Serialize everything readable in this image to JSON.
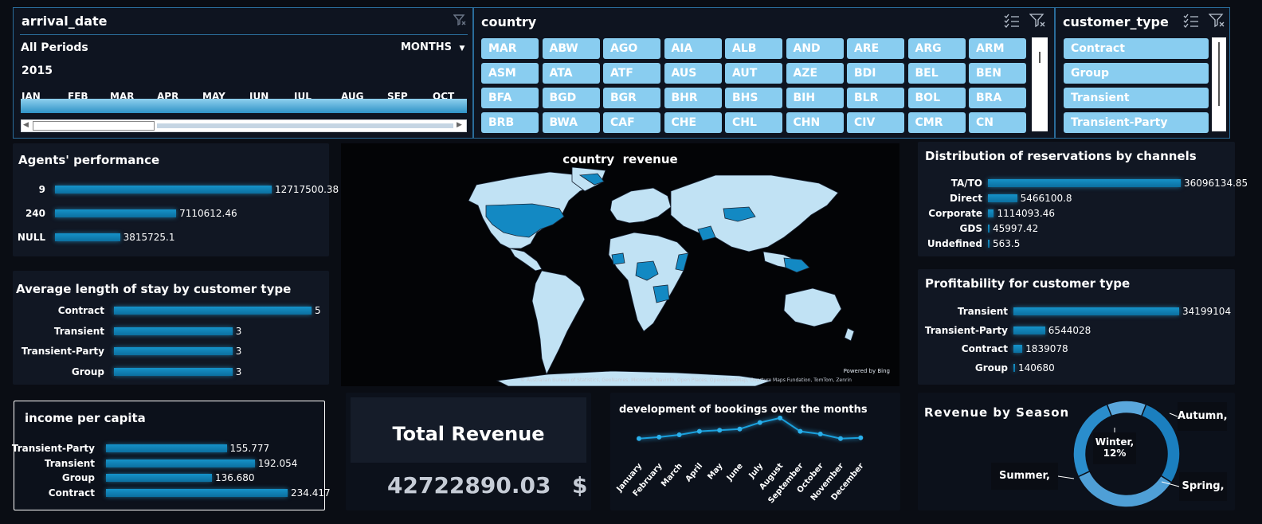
{
  "arrival_slicer": {
    "title": "arrival_date",
    "period": "All Periods",
    "granularity": "MONTHS",
    "year": "2015",
    "months": [
      "JAN",
      "FEB",
      "MAR",
      "APR",
      "MAY",
      "JUN",
      "JUL",
      "AUG",
      "SEP",
      "OCT"
    ]
  },
  "country_slicer": {
    "title": "country",
    "items": [
      "MAR",
      "ABW",
      "AGO",
      "AIA",
      "ALB",
      "AND",
      "ARE",
      "ARG",
      "ARM",
      "ASM",
      "ATA",
      "ATF",
      "AUS",
      "AUT",
      "AZE",
      "BDI",
      "BEL",
      "BEN",
      "BFA",
      "BGD",
      "BGR",
      "BHR",
      "BHS",
      "BIH",
      "BLR",
      "BOL",
      "BRA",
      "BRB",
      "BWA",
      "CAF",
      "CHE",
      "CHL",
      "CHN",
      "CIV",
      "CMR",
      "CN"
    ]
  },
  "customer_slicer": {
    "title": "customer_type",
    "items": [
      "Contract",
      "Group",
      "Transient",
      "Transient-Party"
    ]
  },
  "agents": {
    "title": "Agents' performance",
    "rows": [
      {
        "label": "9",
        "value": 12717500.38,
        "text": "12717500.38"
      },
      {
        "label": "240",
        "value": 7110612.46,
        "text": "7110612.46"
      },
      {
        "label": "NULL",
        "value": 3815725.1,
        "text": "3815725.1"
      }
    ]
  },
  "stay": {
    "title": "Average length of stay by customer type",
    "rows": [
      {
        "label": "Contract",
        "value": 5,
        "text": "5"
      },
      {
        "label": "Transient",
        "value": 3,
        "text": "3"
      },
      {
        "label": "Transient-Party",
        "value": 3,
        "text": "3"
      },
      {
        "label": "Group",
        "value": 3,
        "text": "3"
      }
    ]
  },
  "income": {
    "title": "income per capita",
    "rows": [
      {
        "label": "Transient-Party",
        "value": 155.777,
        "text": "155.777"
      },
      {
        "label": "Transient",
        "value": 192.054,
        "text": "192.054"
      },
      {
        "label": "Group",
        "value": 136.68,
        "text": "136.680"
      },
      {
        "label": "Contract",
        "value": 234.417,
        "text": "234.417"
      }
    ]
  },
  "map": {
    "title": "country  revenue",
    "powered": "Powered by Bing",
    "attribution": "© Australian Bureau of Statistics, GeoNames, Microsoft, Navinfo, Open Places, OpenStreetMap, Overture Maps Fundation, TomTom, Zenrin"
  },
  "total": {
    "title": "Total Revenue",
    "value": "42722890.03",
    "currency": "$"
  },
  "bookings": {
    "title": "development of bookings over the months",
    "months": [
      "January",
      "February",
      "March",
      "April",
      "May",
      "June",
      "July",
      "August",
      "September",
      "October",
      "November",
      "December"
    ],
    "values": [
      0.38,
      0.42,
      0.48,
      0.57,
      0.6,
      0.63,
      0.8,
      0.92,
      0.57,
      0.5,
      0.38,
      0.4
    ]
  },
  "channels": {
    "title": "Distribution of reservations by channels",
    "rows": [
      {
        "label": "TA/TO",
        "value": 36096134.85,
        "text": "36096134.85"
      },
      {
        "label": "Direct",
        "value": 5466100.8,
        "text": "5466100.8"
      },
      {
        "label": "Corporate",
        "value": 1114093.46,
        "text": "1114093.46"
      },
      {
        "label": "GDS",
        "value": 45997.42,
        "text": "45997.42"
      },
      {
        "label": "Undefined",
        "value": 563.5,
        "text": "563.5"
      }
    ]
  },
  "profit": {
    "title": "Profitability for customer type",
    "rows": [
      {
        "label": "Transient",
        "value": 34199104,
        "text": "34199104"
      },
      {
        "label": "Transient-Party",
        "value": 6544028,
        "text": "6544028"
      },
      {
        "label": "Contract",
        "value": 1839078,
        "text": "1839078"
      },
      {
        "label": "Group",
        "value": 140680,
        "text": "140680"
      }
    ]
  },
  "season": {
    "title": "Revenue by Season",
    "center_label": "Winter,",
    "center_pct": "12%",
    "labels": {
      "autumn": "Autumn,",
      "summer": "Summer,",
      "spring": "Spring,"
    },
    "slices": [
      {
        "name": "Winter",
        "value": 12,
        "color": "#5aa7dc"
      },
      {
        "name": "Spring",
        "value": 28,
        "color": "#1b7fbf"
      },
      {
        "name": "Summer",
        "value": 34,
        "color": "#4f9fd6"
      },
      {
        "name": "Autumn",
        "value": 26,
        "color": "#2a8dcc"
      }
    ]
  },
  "colors": {
    "accent": "#1592c9",
    "chip": "#89cdf0",
    "panel": "#111723",
    "background": "#0a0d14"
  }
}
